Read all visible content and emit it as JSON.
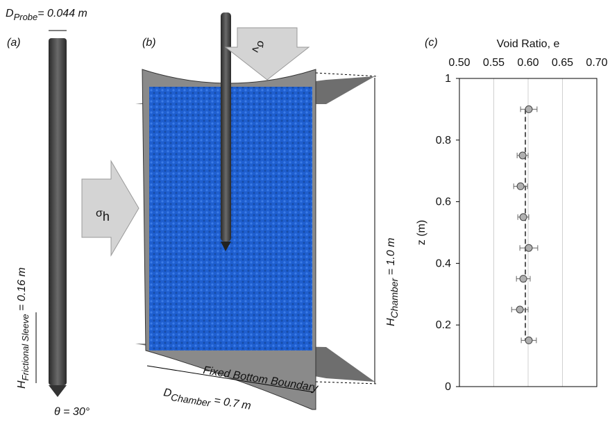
{
  "labels": {
    "panel_a": "(a)",
    "panel_b": "(b)",
    "panel_c": "(c)",
    "d_probe": {
      "symbol": "D",
      "sub": "Probe",
      "rest": "= 0.044 m"
    },
    "h_sleeve": {
      "symbol": "H",
      "sub": "Frictional Sleeve",
      "rest": " = 0.16 m"
    },
    "theta": "θ = 30°",
    "sigma_h": {
      "symbol": "σ",
      "sub": "h"
    },
    "sigma_v": {
      "symbol": "σ",
      "sub": "v"
    },
    "h_chamber": {
      "symbol": "H",
      "sub": "Chamber",
      "rest": " = 1.0 m"
    },
    "d_chamber": {
      "symbol": "D",
      "sub": "Chamber",
      "rest": " = 0.7 m"
    },
    "bottom": "Fixed Bottom Boundary"
  },
  "chart_data": {
    "type": "scatter",
    "x_label": "Void Ratio, e",
    "y_label": "z (m)",
    "x": [
      0.601,
      0.592,
      0.589,
      0.593,
      0.601,
      0.593,
      0.588,
      0.601
    ],
    "values": [
      0.9,
      0.75,
      0.65,
      0.55,
      0.45,
      0.35,
      0.25,
      0.15
    ],
    "errors": [
      0.012,
      0.008,
      0.01,
      0.008,
      0.013,
      0.01,
      0.012,
      0.011
    ],
    "mean_line": 0.596,
    "xlim": [
      0.5,
      0.7
    ],
    "xticks": [
      {
        "value": 0.5,
        "label": "0.50"
      },
      0.55,
      {
        "value": 0.6,
        "label": "0.60"
      },
      0.65,
      {
        "value": 0.7,
        "label": "0.70"
      }
    ],
    "ylim": [
      0,
      1
    ],
    "yticks": [
      0,
      0.2,
      0.4,
      0.6,
      0.8,
      1
    ],
    "color": "#b0b0b0",
    "grid": true
  }
}
